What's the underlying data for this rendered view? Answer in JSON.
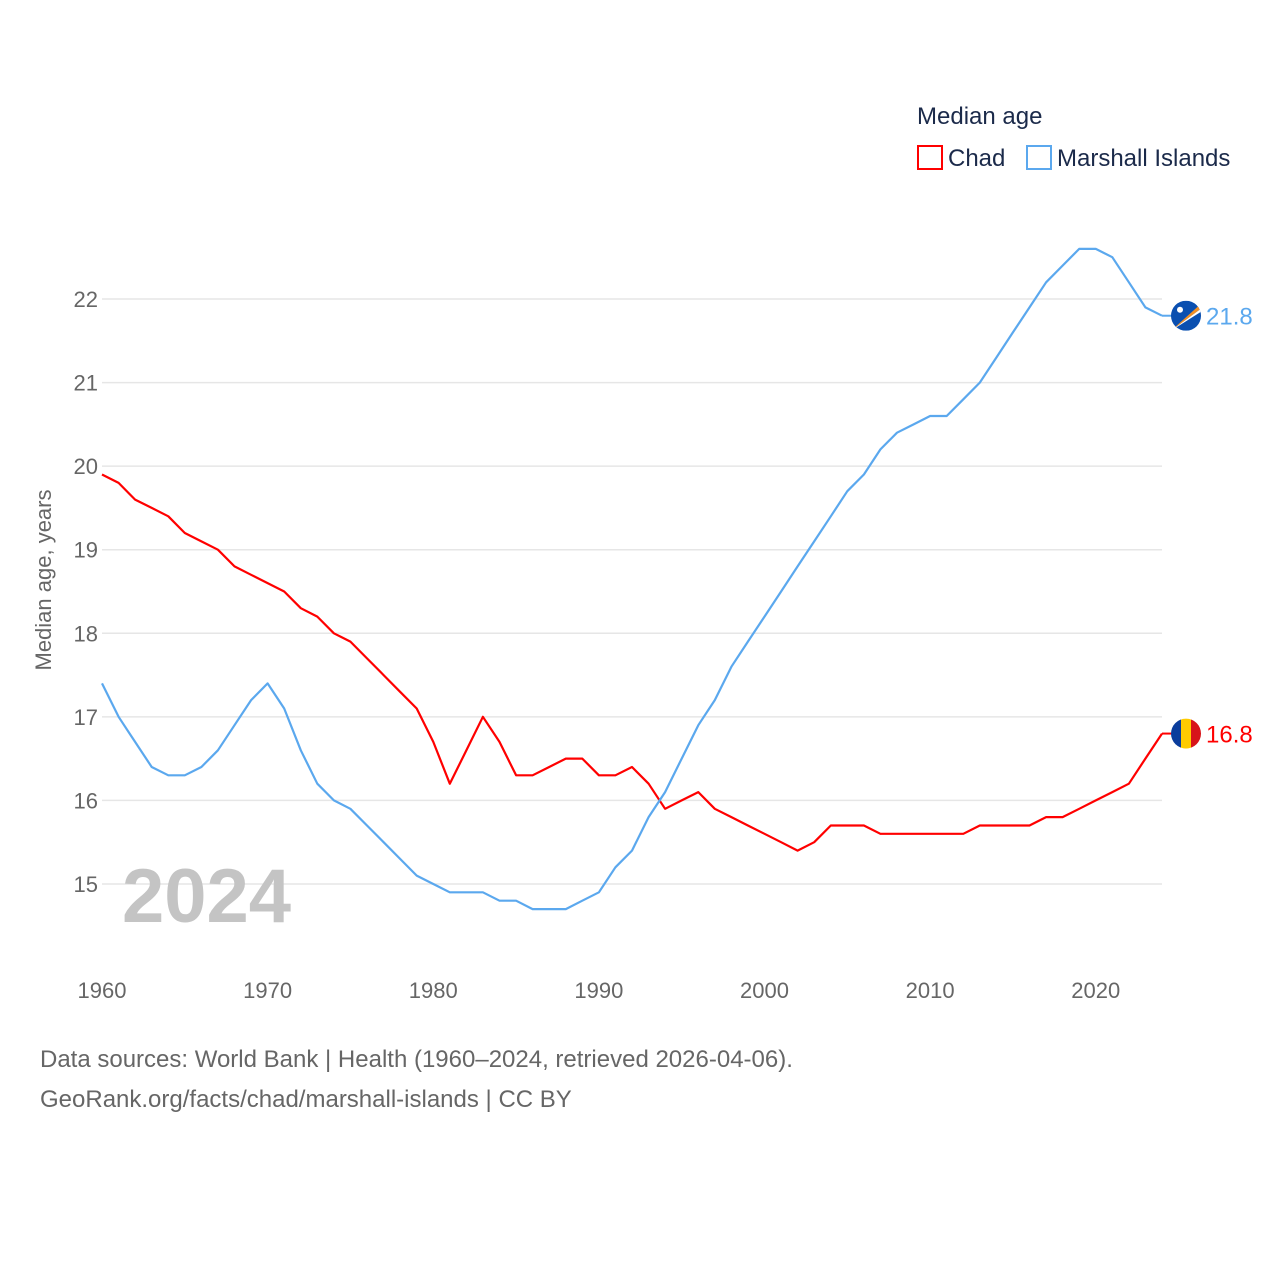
{
  "chart_data": {
    "type": "line",
    "title": "",
    "legend_title": "Median age",
    "legend_placement": "top-right",
    "ylabel": "Median age, years",
    "xlabel": "",
    "xlim": [
      1960,
      2024
    ],
    "ylim": [
      14.3,
      23
    ],
    "x_ticks": [
      1960,
      1970,
      1980,
      1990,
      2000,
      2010,
      2020
    ],
    "y_ticks": [
      15,
      16,
      17,
      18,
      19,
      20,
      21,
      22
    ],
    "grid": true,
    "year_watermark": "2024",
    "x": [
      1960,
      1961,
      1962,
      1963,
      1964,
      1965,
      1966,
      1967,
      1968,
      1969,
      1970,
      1971,
      1972,
      1973,
      1974,
      1975,
      1976,
      1977,
      1978,
      1979,
      1980,
      1981,
      1982,
      1983,
      1984,
      1985,
      1986,
      1987,
      1988,
      1989,
      1990,
      1991,
      1992,
      1993,
      1994,
      1995,
      1996,
      1997,
      1998,
      1999,
      2000,
      2001,
      2002,
      2003,
      2004,
      2005,
      2006,
      2007,
      2008,
      2009,
      2010,
      2011,
      2012,
      2013,
      2014,
      2015,
      2016,
      2017,
      2018,
      2019,
      2020,
      2021,
      2022,
      2023,
      2024
    ],
    "series": [
      {
        "name": "Chad",
        "color": "#ff0000",
        "end_label": "16.8",
        "flag": "chad-flag",
        "values": [
          19.9,
          19.8,
          19.6,
          19.5,
          19.4,
          19.2,
          19.1,
          19.0,
          18.8,
          18.7,
          18.6,
          18.5,
          18.3,
          18.2,
          18.0,
          17.9,
          17.7,
          17.5,
          17.3,
          17.1,
          16.7,
          16.2,
          16.6,
          17.0,
          16.7,
          16.3,
          16.3,
          16.4,
          16.5,
          16.5,
          16.3,
          16.3,
          16.4,
          16.2,
          15.9,
          16.0,
          16.1,
          15.9,
          15.8,
          15.7,
          15.6,
          15.5,
          15.4,
          15.5,
          15.7,
          15.7,
          15.7,
          15.6,
          15.6,
          15.6,
          15.6,
          15.6,
          15.6,
          15.7,
          15.7,
          15.7,
          15.7,
          15.8,
          15.8,
          15.9,
          16.0,
          16.1,
          16.2,
          16.5,
          16.8
        ]
      },
      {
        "name": "Marshall Islands",
        "color": "#5ba8ee",
        "end_label": "21.8",
        "flag": "marshall-islands-flag",
        "values": [
          17.4,
          17.0,
          16.7,
          16.4,
          16.3,
          16.3,
          16.4,
          16.6,
          16.9,
          17.2,
          17.4,
          17.1,
          16.6,
          16.2,
          16.0,
          15.9,
          15.7,
          15.5,
          15.3,
          15.1,
          15.0,
          14.9,
          14.9,
          14.9,
          14.8,
          14.8,
          14.7,
          14.7,
          14.7,
          14.8,
          14.9,
          15.2,
          15.4,
          15.8,
          16.1,
          16.5,
          16.9,
          17.2,
          17.6,
          17.9,
          18.2,
          18.5,
          18.8,
          19.1,
          19.4,
          19.7,
          19.9,
          20.2,
          20.4,
          20.5,
          20.6,
          20.6,
          20.8,
          21.0,
          21.3,
          21.6,
          21.9,
          22.2,
          22.4,
          22.6,
          22.6,
          22.5,
          22.2,
          21.9,
          21.8
        ]
      }
    ]
  },
  "footer": {
    "line1": "Data sources: World Bank | Health (1960–2024, retrieved 2026-04-06).",
    "line2": "GeoRank.org/facts/chad/marshall-islands | CC BY"
  }
}
